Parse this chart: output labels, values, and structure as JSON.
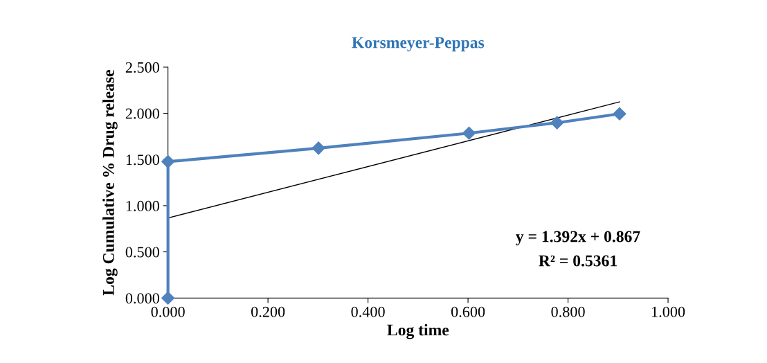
{
  "chart_data": {
    "type": "line",
    "title": "Korsmeyer-Peppas",
    "xlabel": "Log time",
    "ylabel": "Log Cumulative % Drug release",
    "series": [
      {
        "color": "#4f81bd",
        "marker": "diamond",
        "x": [
          0.0,
          0.0,
          0.301,
          0.602,
          0.778,
          0.903
        ],
        "values": [
          0.0,
          1.477,
          1.623,
          1.785,
          1.898,
          1.995
        ]
      },
      {
        "color": "#000000",
        "marker": "none",
        "x": [
          0.0,
          0.903
        ],
        "values": [
          0.867,
          2.124
        ]
      }
    ],
    "xlim": [
      0.0,
      1.0
    ],
    "xticks": [
      {
        "value": 0,
        "label": "0.000"
      },
      {
        "value": 0.2,
        "label": "0.200"
      },
      {
        "value": 0.4,
        "label": "0.400"
      },
      {
        "value": 0.6,
        "label": "0.600"
      },
      {
        "value": 0.8,
        "label": "0.800"
      },
      {
        "value": 1.0,
        "label": "1.000"
      }
    ],
    "ylim": [
      0.0,
      2.5
    ],
    "yticks": [
      {
        "value": 0,
        "label": "0.000"
      },
      {
        "value": 0.5,
        "label": "0.500"
      },
      {
        "value": 1.0,
        "label": "1.000"
      },
      {
        "value": 1.5,
        "label": "1.500"
      },
      {
        "value": 2.0,
        "label": "2.000"
      },
      {
        "value": 2.5,
        "label": "2.500"
      }
    ],
    "annotations": [
      "y = 1.392x + 0.867",
      "R² = 0.5361"
    ],
    "grid": false,
    "legend": false
  }
}
